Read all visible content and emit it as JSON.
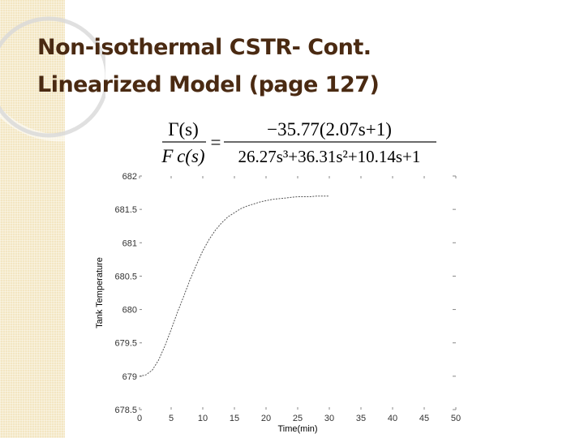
{
  "slide": {
    "title_line1": "Non-isothermal CSTR- Cont.",
    "title_line2": "Linearized Model (page 127)"
  },
  "formula": {
    "numerator_left": "Γ(s)",
    "denominator_left": "F c(s)",
    "equals": "=",
    "numerator_right": "−35.77(2.07s+1)",
    "denominator_right": "26.27s³+36.31s²+10.14s+1"
  },
  "colors": {
    "title": "#4a2a12",
    "sidebar": "#f3e6c2",
    "curve": "#555555"
  },
  "chart_data": {
    "type": "line",
    "title": "",
    "xlabel": "Time(min)",
    "ylabel": "Tank Temperature",
    "xlim": [
      0,
      50
    ],
    "ylim": [
      678.5,
      682
    ],
    "xticks": [
      "0",
      "5",
      "10",
      "15",
      "20",
      "25",
      "30",
      "35",
      "40",
      "45",
      "50"
    ],
    "yticks": [
      "678.5",
      "679",
      "679.5",
      "680",
      "680.5",
      "681",
      "681.5",
      "682"
    ],
    "grid": false,
    "series": [
      {
        "x": [
          0,
          1,
          2,
          3,
          4,
          5,
          6,
          7,
          8,
          9,
          10,
          11,
          12,
          13,
          14,
          15,
          16,
          17,
          18,
          19,
          20,
          21,
          22,
          23,
          24,
          25,
          26,
          27,
          28,
          29,
          30
        ],
        "values": [
          679.0,
          679.02,
          679.09,
          679.24,
          679.45,
          679.7,
          679.96,
          680.2,
          680.45,
          680.67,
          680.88,
          681.05,
          681.19,
          681.3,
          681.39,
          681.45,
          681.51,
          681.55,
          681.58,
          681.61,
          681.63,
          681.65,
          681.66,
          681.67,
          681.68,
          681.69,
          681.69,
          681.69,
          681.7,
          681.7,
          681.7
        ]
      }
    ]
  }
}
